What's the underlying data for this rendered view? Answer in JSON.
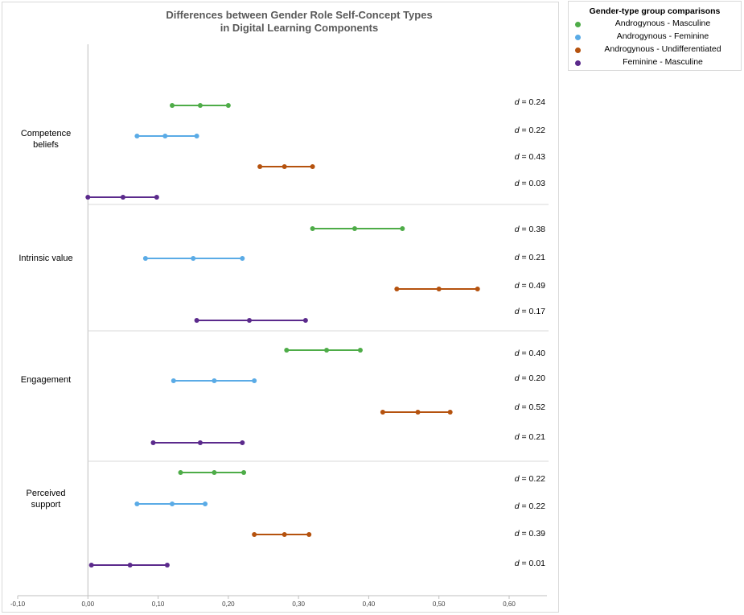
{
  "chart_data": {
    "type": "scatter",
    "title_lines": [
      "Differences between Gender Role Self-Concept Types",
      "in Digital Learning Components"
    ],
    "xlim": [
      -0.1,
      0.6
    ],
    "x_ticks": [
      -0.1,
      0.0,
      0.1,
      0.2,
      0.3,
      0.4,
      0.5,
      0.6
    ],
    "x_tick_labels": [
      "-0,10",
      "0,00",
      "0,10",
      "0,20",
      "0,30",
      "0,40",
      "0,50",
      "0,60"
    ],
    "legend_title": "Gender-type group comparisons",
    "legend_position": "right",
    "series": [
      {
        "name": "Androgynous - Masculine",
        "color": "#4eac48"
      },
      {
        "name": "Androgynous - Feminine",
        "color": "#5aabe6"
      },
      {
        "name": "Androgynous - Undifferentiated",
        "color": "#b5520e"
      },
      {
        "name": "Feminine - Masculine",
        "color": "#5b2a8c"
      }
    ],
    "groups": [
      {
        "label_lines": [
          "Competence",
          "beliefs"
        ],
        "intervals": [
          {
            "series": 0,
            "low": 0.12,
            "mid": 0.16,
            "high": 0.2,
            "d_label": "d = 0.24"
          },
          {
            "series": 1,
            "low": 0.07,
            "mid": 0.11,
            "high": 0.155,
            "d_label": "d = 0.22"
          },
          {
            "series": 2,
            "low": 0.245,
            "mid": 0.28,
            "high": 0.32,
            "d_label": "d = 0.43"
          },
          {
            "series": 3,
            "low": 0.0,
            "mid": 0.05,
            "high": 0.098,
            "d_label": "d = 0.03"
          }
        ]
      },
      {
        "label_lines": [
          "Intrinsic value"
        ],
        "intervals": [
          {
            "series": 0,
            "low": 0.32,
            "mid": 0.38,
            "high": 0.448,
            "d_label": "d = 0.38"
          },
          {
            "series": 1,
            "low": 0.082,
            "mid": 0.15,
            "high": 0.22,
            "d_label": "d = 0.21"
          },
          {
            "series": 2,
            "low": 0.44,
            "mid": 0.5,
            "high": 0.555,
            "d_label": "d = 0.49"
          },
          {
            "series": 3,
            "low": 0.155,
            "mid": 0.23,
            "high": 0.31,
            "d_label": "d = 0.17"
          }
        ]
      },
      {
        "label_lines": [
          "Engagement"
        ],
        "intervals": [
          {
            "series": 0,
            "low": 0.283,
            "mid": 0.34,
            "high": 0.388,
            "d_label": "d = 0.40"
          },
          {
            "series": 1,
            "low": 0.122,
            "mid": 0.18,
            "high": 0.237,
            "d_label": "d = 0.20"
          },
          {
            "series": 2,
            "low": 0.42,
            "mid": 0.47,
            "high": 0.516,
            "d_label": "d = 0.52"
          },
          {
            "series": 3,
            "low": 0.093,
            "mid": 0.16,
            "high": 0.22,
            "d_label": "d = 0.21"
          }
        ]
      },
      {
        "label_lines": [
          "Perceived",
          "support"
        ],
        "intervals": [
          {
            "series": 0,
            "low": 0.132,
            "mid": 0.18,
            "high": 0.222,
            "d_label": "d = 0.22"
          },
          {
            "series": 1,
            "low": 0.07,
            "mid": 0.12,
            "high": 0.167,
            "d_label": "d = 0.22"
          },
          {
            "series": 2,
            "low": 0.237,
            "mid": 0.28,
            "high": 0.315,
            "d_label": "d = 0.39"
          },
          {
            "series": 3,
            "low": 0.005,
            "mid": 0.06,
            "high": 0.113,
            "d_label": "d = 0.01"
          }
        ]
      }
    ]
  }
}
